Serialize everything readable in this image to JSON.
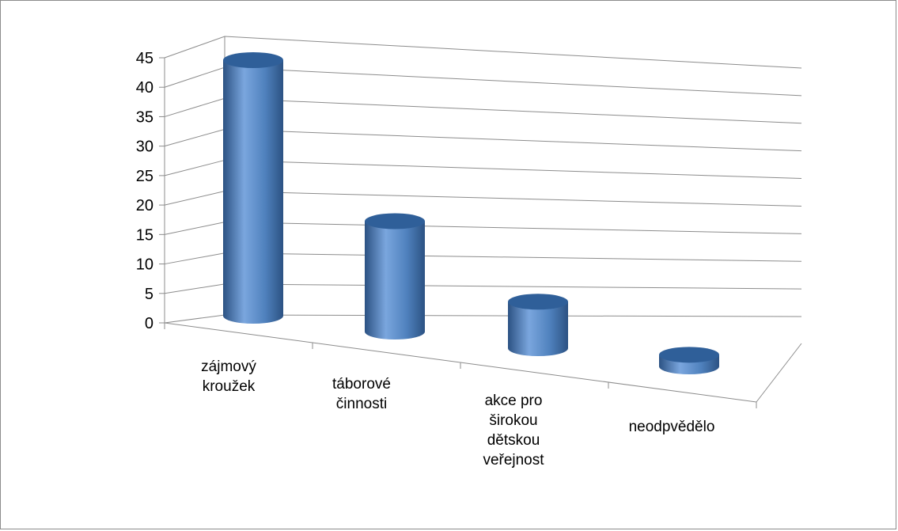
{
  "chart_data": {
    "type": "bar",
    "style": "3d-cylinder",
    "categories": [
      [
        "zájmový",
        "kroužek"
      ],
      [
        "táborové",
        "činnosti"
      ],
      [
        "akce pro",
        "širokou",
        "dětskou",
        "veřejnost"
      ],
      [
        "neodpvědělo"
      ]
    ],
    "values": [
      44,
      19,
      8,
      2
    ],
    "ylim": [
      0,
      45
    ],
    "yticks": [
      0,
      5,
      10,
      15,
      20,
      25,
      30,
      35,
      40,
      45
    ],
    "grid": true,
    "legend": "none",
    "colors": {
      "bar_body": "#4f81bd",
      "bar_top": "#2f5f99",
      "bar_highlight": "#7aa6de",
      "bar_shadow": "#2c5283",
      "gridline": "#8c8c8c"
    }
  }
}
